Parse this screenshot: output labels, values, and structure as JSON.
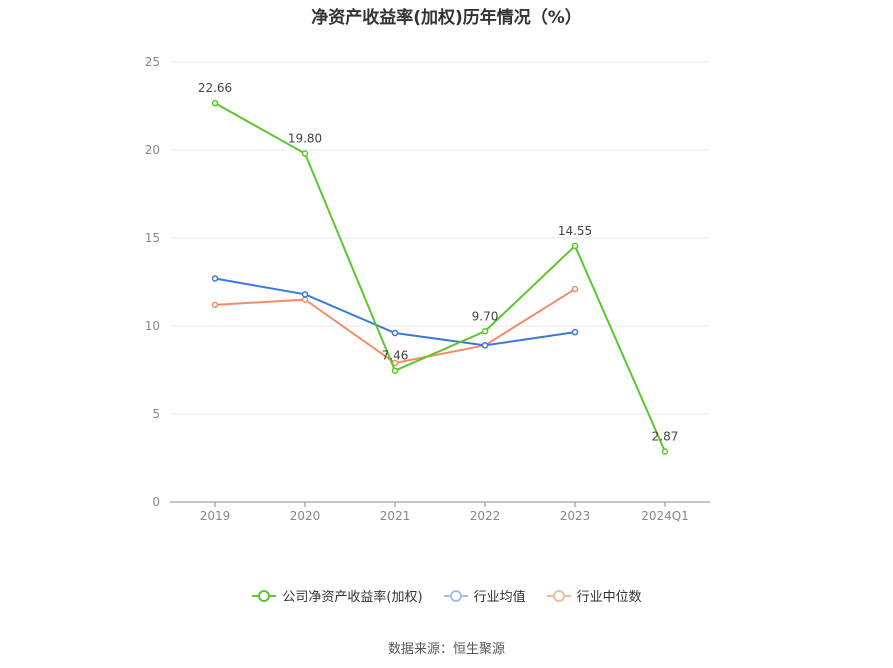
{
  "title": "净资产收益率(加权)历年情况（%）",
  "source": "数据来源：恒生聚源",
  "chart_data": {
    "type": "line",
    "title": "净资产收益率(加权)历年情况（%）",
    "categories": [
      "2019",
      "2020",
      "2021",
      "2022",
      "2023",
      "2024Q1"
    ],
    "ylim": [
      0,
      25
    ],
    "yticks": [
      0,
      5,
      10,
      15,
      20,
      25
    ],
    "grid": true,
    "legend_position": "bottom",
    "series": [
      {
        "name": "公司净资产收益率(加权)",
        "color": "#5cc72c",
        "values": [
          22.66,
          19.8,
          7.46,
          9.7,
          14.55,
          2.87
        ],
        "labels": [
          "22.66",
          "19.80",
          "7.46",
          "9.70",
          "14.55",
          "2.87"
        ]
      },
      {
        "name": "行业均值",
        "color": "#3c78d8",
        "values": [
          12.7,
          11.8,
          9.6,
          8.9,
          9.65,
          null
        ]
      },
      {
        "name": "行业中位数",
        "color": "#f28c66",
        "values": [
          11.2,
          11.5,
          7.9,
          8.9,
          12.1,
          null
        ]
      }
    ]
  }
}
